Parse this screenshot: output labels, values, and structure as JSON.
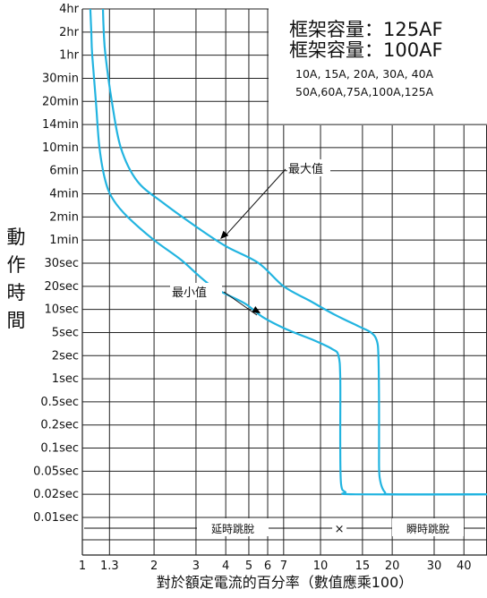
{
  "chart_data": {
    "type": "line",
    "title_lines": [
      "框架容量：125AF",
      "框架容量：100AF"
    ],
    "ratings_lines": [
      "10A, 15A, 20A, 30A, 40A",
      "50A,60A,75A,100A,125A"
    ],
    "ylabel_chars": [
      "動",
      "作",
      "時",
      "間"
    ],
    "xlabel": "對於額定電流的百分率（數值應乘100）",
    "x_scale": "log",
    "y_scale": "log",
    "xlim": [
      1,
      50
    ],
    "x_ticks": [
      1,
      1.3,
      2,
      3,
      4,
      5,
      6,
      7,
      10,
      15,
      20,
      30,
      40
    ],
    "x_tick_labels": [
      "1",
      "1.3",
      "2",
      "3",
      "4",
      "5",
      "6",
      "7",
      "10",
      "15",
      "20",
      "30",
      "40"
    ],
    "y_ticks": [
      {
        "label": "4hr",
        "seconds": 14400
      },
      {
        "label": "2hr",
        "seconds": 7200
      },
      {
        "label": "1hr",
        "seconds": 3600
      },
      {
        "label": "30min",
        "seconds": 1800
      },
      {
        "label": "20min",
        "seconds": 1200
      },
      {
        "label": "14min",
        "seconds": 840
      },
      {
        "label": "10min",
        "seconds": 600
      },
      {
        "label": "6min",
        "seconds": 360
      },
      {
        "label": "4min",
        "seconds": 240
      },
      {
        "label": "2min",
        "seconds": 120
      },
      {
        "label": "1min",
        "seconds": 60
      },
      {
        "label": "30sec",
        "seconds": 30
      },
      {
        "label": "20sec",
        "seconds": 20
      },
      {
        "label": "10sec",
        "seconds": 10
      },
      {
        "label": "5sec",
        "seconds": 5
      },
      {
        "label": "2sec",
        "seconds": 2
      },
      {
        "label": "1sec",
        "seconds": 1
      },
      {
        "label": "0.5sec",
        "seconds": 0.5
      },
      {
        "label": "0.2sec",
        "seconds": 0.2
      },
      {
        "label": "0.1sec",
        "seconds": 0.1
      },
      {
        "label": "0.05sec",
        "seconds": 0.05
      },
      {
        "label": "0.02sec",
        "seconds": 0.02
      },
      {
        "label": "0.01sec",
        "seconds": 0.01
      }
    ],
    "grid": true,
    "line_color": "#22b4e0",
    "series": [
      {
        "name": "最大值",
        "points": [
          [
            1.22,
            14400
          ],
          [
            1.23,
            7200
          ],
          [
            1.25,
            3600
          ],
          [
            1.33,
            1200
          ],
          [
            1.45,
            600
          ],
          [
            1.7,
            300
          ],
          [
            2.2,
            180
          ],
          [
            3.0,
            90
          ],
          [
            4.0,
            50
          ],
          [
            5.5,
            30
          ],
          [
            7.0,
            20
          ],
          [
            9.0,
            13
          ],
          [
            11.5,
            8.5
          ],
          [
            14.5,
            6
          ],
          [
            16.3,
            5
          ],
          [
            17.2,
            3.7
          ],
          [
            17.5,
            2
          ],
          [
            17.6,
            0.5
          ],
          [
            17.6,
            0.1
          ],
          [
            17.7,
            0.04
          ],
          [
            18.6,
            0.022
          ],
          [
            20.5,
            0.02
          ],
          [
            50,
            0.02
          ]
        ]
      },
      {
        "name": "最小值",
        "points": [
          [
            1.08,
            14400
          ],
          [
            1.09,
            7200
          ],
          [
            1.1,
            3600
          ],
          [
            1.14,
            1200
          ],
          [
            1.18,
            600
          ],
          [
            1.25,
            300
          ],
          [
            1.35,
            200
          ],
          [
            1.55,
            120
          ],
          [
            2.0,
            60
          ],
          [
            2.6,
            33
          ],
          [
            3.5,
            20
          ],
          [
            4.8,
            12
          ],
          [
            5.7,
            8
          ],
          [
            7.2,
            5.5
          ],
          [
            9.5,
            3.6
          ],
          [
            11.2,
            2.6
          ],
          [
            11.9,
            2
          ],
          [
            12.1,
            1
          ],
          [
            12.1,
            0.1
          ],
          [
            12.2,
            0.03
          ],
          [
            12.7,
            0.022
          ],
          [
            14.0,
            0.02
          ],
          [
            50,
            0.02
          ]
        ]
      }
    ],
    "annotations": [
      {
        "text": "最大值",
        "series": "最大值",
        "at": [
          3.8,
          62
        ]
      },
      {
        "text": "最小值",
        "series": "最小值",
        "at": [
          5.6,
          8.9
        ]
      }
    ],
    "zones": [
      {
        "label": "延時跳脫",
        "from": 1,
        "to": 12
      },
      {
        "label": "瞬時跳脫",
        "from": 12,
        "to": 50
      }
    ],
    "zone_marker": {
      "symbol": "×",
      "x": 12
    }
  }
}
